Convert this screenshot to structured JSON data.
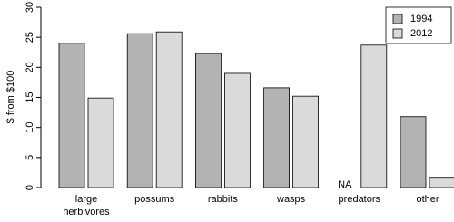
{
  "chart_data": {
    "type": "bar",
    "ylabel": "$ from $100",
    "categories": [
      "large\nherbivores",
      "possums",
      "rabbits",
      "wasps",
      "predators",
      "other"
    ],
    "series": [
      {
        "name": "1994",
        "color": "#b3b3b3",
        "values": [
          24.0,
          25.6,
          22.3,
          16.6,
          null,
          11.8
        ],
        "value_labels": [
          null,
          null,
          null,
          null,
          "NA",
          null
        ]
      },
      {
        "name": "2012",
        "color": "#dadada",
        "values": [
          14.9,
          25.9,
          19.0,
          15.2,
          23.7,
          1.7
        ]
      }
    ],
    "ylim": [
      0,
      30
    ],
    "yticks": [
      0,
      5,
      10,
      15,
      20,
      25,
      30
    ],
    "legend": "top-right"
  }
}
